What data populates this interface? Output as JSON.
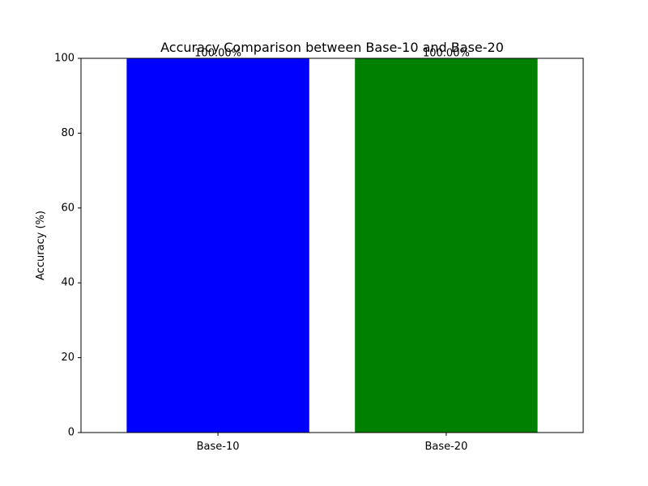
{
  "chart_data": {
    "type": "bar",
    "title": "Accuracy Comparison between Base-10 and Base-20",
    "xlabel": "",
    "ylabel": "Accuracy (%)",
    "categories": [
      "Base-10",
      "Base-20"
    ],
    "values": [
      100,
      100
    ],
    "value_labels": [
      "100.00%",
      "100.00%"
    ],
    "bar_colors": [
      "#0000ff",
      "#008000"
    ],
    "ylim": [
      0,
      100
    ],
    "yticks": [
      0,
      20,
      40,
      60,
      80,
      100
    ],
    "ytick_labels": [
      "0",
      "20",
      "40",
      "60",
      "80",
      "100"
    ],
    "grid": false,
    "legend": "none"
  }
}
